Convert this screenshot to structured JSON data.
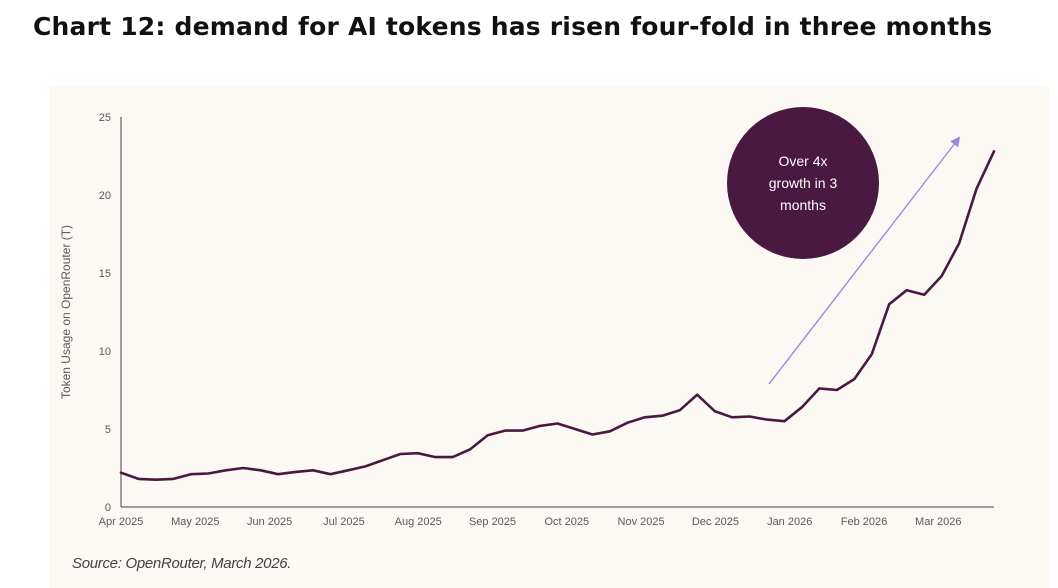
{
  "title": "Chart 12: demand for AI tokens has risen four-fold in three months",
  "source": "Source: OpenRouter, March 2026.",
  "chart_data": {
    "type": "line",
    "title": "Chart 12: demand for AI tokens has risen four-fold in three months",
    "ylabel": "Token Usage on OpenRouter (T)",
    "xlabel": "",
    "ylim": [
      0,
      25
    ],
    "yticks": [
      0,
      5,
      10,
      15,
      20,
      25
    ],
    "xticks": [
      "Apr 2025",
      "May 2025",
      "Jun 2025",
      "Jul 2025",
      "Aug 2025",
      "Sep 2025",
      "Oct 2025",
      "Nov 2025",
      "Dec 2025",
      "Jan 2026",
      "Feb 2026",
      "Mar 2026"
    ],
    "series": [
      {
        "color": "#4a1942",
        "values": [
          2.2,
          1.8,
          1.75,
          1.8,
          2.1,
          2.15,
          2.35,
          2.5,
          2.35,
          2.1,
          2.25,
          2.35,
          2.1,
          2.35,
          2.6,
          3.0,
          3.4,
          3.45,
          3.2,
          3.2,
          3.7,
          4.6,
          4.9,
          4.9,
          5.2,
          5.35,
          5.0,
          4.65,
          4.85,
          5.4,
          5.75,
          5.85,
          6.2,
          7.2,
          6.15,
          5.75,
          5.8,
          5.6,
          5.5,
          6.4,
          7.6,
          7.5,
          8.2,
          9.8,
          13.0,
          13.9,
          13.6,
          14.8,
          16.9,
          20.4,
          22.8
        ]
      }
    ],
    "annotation": {
      "text": [
        "Over 4x",
        "growth in 3",
        "months"
      ],
      "bubble_color": "#4a1942",
      "arrow_color": "#9b87e6"
    },
    "grid": false,
    "legend": "none"
  }
}
